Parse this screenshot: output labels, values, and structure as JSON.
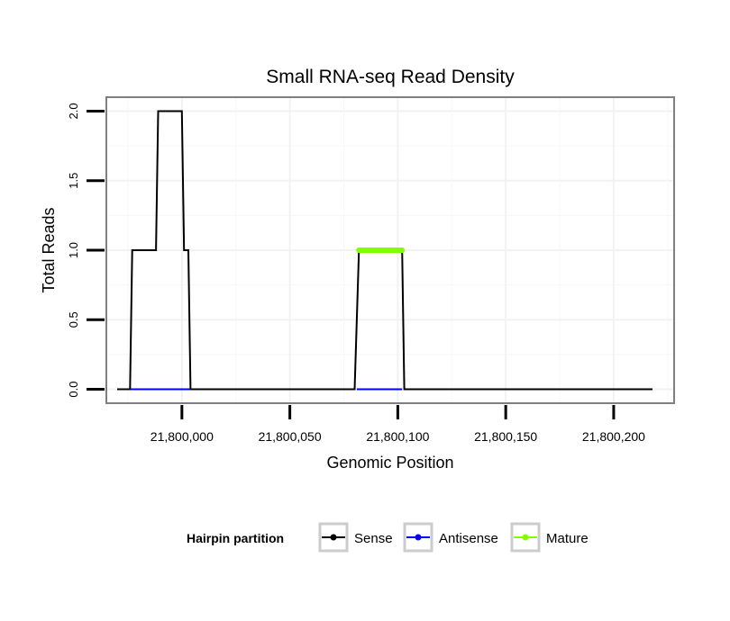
{
  "chart_data": {
    "type": "line",
    "title": "Small RNA-seq Read Density",
    "xlabel": "Genomic Position",
    "ylabel": "Total Reads",
    "xlim": [
      21799965,
      21800228
    ],
    "ylim": [
      -0.1,
      2.1
    ],
    "xticks": [
      21800000,
      21800050,
      21800100,
      21800150,
      21800200
    ],
    "xtick_labels": [
      "21,800,000",
      "21,800,050",
      "21,800,100",
      "21,800,150",
      "21,800,200"
    ],
    "yticks": [
      0.0,
      0.5,
      1.0,
      1.5,
      2.0
    ],
    "ytick_labels": [
      "0.0",
      "0.5",
      "1.0",
      "1.5",
      "2.0"
    ],
    "grid": true,
    "legend": {
      "title": "Hairpin partition",
      "position": "bottom"
    },
    "series": [
      {
        "name": "Sense",
        "color": "#000000",
        "x": [
          21799970,
          21799976,
          21799977,
          21799988,
          21799989,
          21800000,
          21800001,
          21800003,
          21800004,
          21800080,
          21800082,
          21800102,
          21800103,
          21800218
        ],
        "y": [
          0,
          0,
          1,
          1,
          2,
          2,
          1,
          1,
          0,
          0,
          1,
          1,
          0,
          0
        ]
      },
      {
        "name": "Antisense",
        "color": "#0000ff",
        "x": [
          21799976,
          21800004
        ],
        "y": [
          0,
          0
        ],
        "segments": [
          [
            21799976,
            21800004
          ],
          [
            21800081,
            21800102
          ]
        ]
      },
      {
        "name": "Mature",
        "color": "#7fff00",
        "x": [
          21800082,
          21800102
        ],
        "y": [
          1,
          1
        ]
      }
    ]
  }
}
